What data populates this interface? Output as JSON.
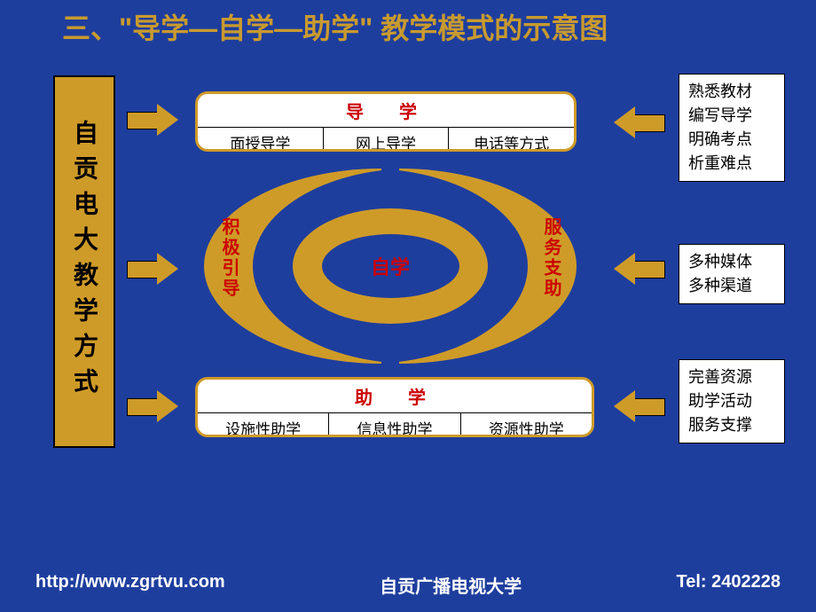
{
  "colors": {
    "background": "#1e3e9e",
    "gold": "#cf9b28",
    "title_gold": "#c99a2e",
    "red": "#c00",
    "white": "#ffffff",
    "black": "#000000"
  },
  "title": "三、\"导学—自学—助学\" 教学模式的示意图",
  "left_box": {
    "text": "自贡电大教学方式"
  },
  "top_section": {
    "title": "导　学",
    "cells": [
      "面授导学",
      "网上导学",
      "电话等方式"
    ]
  },
  "bottom_section": {
    "title": "助　学",
    "cells": [
      "设施性助学",
      "信息性助学",
      "资源性助学"
    ]
  },
  "center": {
    "left_crescent": "积极引导",
    "right_crescent": "服务支助",
    "center_label": "自学"
  },
  "right_boxes": {
    "top": [
      "熟悉教材",
      "编写导学",
      "明确考点",
      "析重难点"
    ],
    "mid": [
      "多种媒体",
      "多种渠道"
    ],
    "bottom": [
      "完善资源",
      "助学活动",
      "服务支撑"
    ]
  },
  "footer": {
    "url": "http://www.zgrtvu.com",
    "org": "自贡广播电视大学",
    "tel": "Tel:  2402228"
  }
}
